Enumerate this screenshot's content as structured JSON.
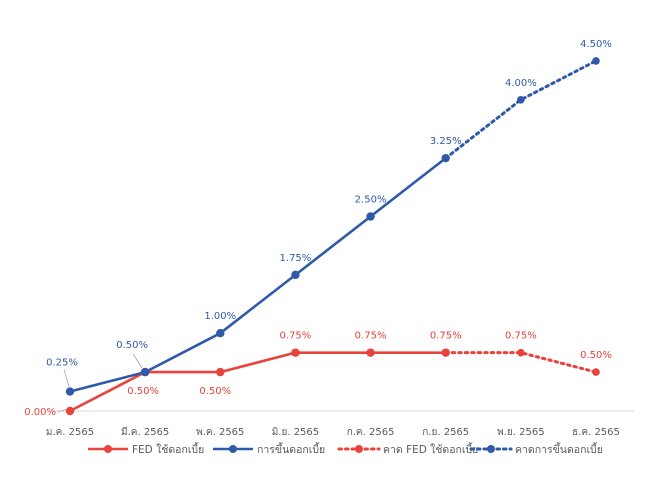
{
  "colors": {
    "fed": "#e8433c",
    "thai": "#2f5aa8",
    "axis": "#d9d9d9",
    "tick": "#595959",
    "leader": "#a6a6a6"
  },
  "chart_data": {
    "type": "line",
    "categories": [
      "ม.ค. 2565",
      "มี.ค. 2565",
      "พ.ค. 2565",
      "มิ.ย. 2565",
      "ก.ค. 2565",
      "ก.ย. 2565",
      "พ.ย. 2565",
      "ธ.ค. 2565"
    ],
    "ylim": [
      0,
      5
    ],
    "grid": false,
    "legend_position": "bottom",
    "series": [
      {
        "name": "FED ใช้ดอกเบี้ย",
        "color": "#e8433c",
        "style": "solid",
        "values": [
          0.0,
          0.5,
          0.5,
          0.75,
          0.75,
          0.75,
          null,
          null
        ],
        "labels": [
          "0.00%",
          "0.50%",
          "0.50%",
          "0.75%",
          "0.75%",
          "0.75%",
          "",
          ""
        ]
      },
      {
        "name": "การขึ้นดอกเบี้ย",
        "color": "#2f5aa8",
        "style": "solid",
        "values": [
          0.25,
          0.5,
          1.0,
          1.75,
          2.5,
          3.25,
          null,
          null
        ],
        "labels": [
          "0.25%",
          "0.50%",
          "1.00%",
          "1.75%",
          "2.50%",
          "3.25%",
          "",
          ""
        ]
      },
      {
        "name": "คาด FED ใช้ดอกเบี้ย",
        "color": "#e8433c",
        "style": "dotted",
        "values": [
          null,
          null,
          null,
          null,
          null,
          0.75,
          0.75,
          0.5
        ],
        "labels": [
          "",
          "",
          "",
          "",
          "",
          "",
          "0.75%",
          "0.50%"
        ]
      },
      {
        "name": "คาดการขึ้นดอกเบี้ย",
        "color": "#2f5aa8",
        "style": "dotted",
        "values": [
          null,
          null,
          null,
          null,
          null,
          3.25,
          4.0,
          4.5
        ],
        "labels": [
          "",
          "",
          "",
          "",
          "",
          "",
          "4.00%",
          "4.50%"
        ]
      }
    ]
  }
}
